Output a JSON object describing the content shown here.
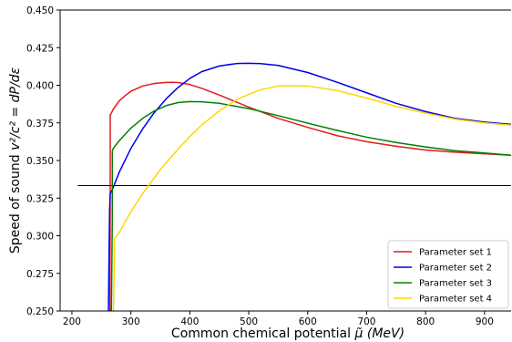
{
  "chart_data": {
    "type": "line",
    "xlabel": "Common chemical potential μ̃ (MeV)",
    "xlabel_main": "Common chemical potential ",
    "xlabel_sym": "μ̃",
    "xlabel_unit": "(MeV)",
    "ylabel": "Speed of sound v²/c² = dP/dε",
    "ylabel_main": "Speed of sound ",
    "ylabel_math": "v²/c² = dP/dε",
    "xlim": [
      180,
      945
    ],
    "ylim": [
      0.25,
      0.45
    ],
    "xticks": [
      "200",
      "300",
      "400",
      "500",
      "600",
      "700",
      "800",
      "900"
    ],
    "yticks": [
      "0.250",
      "0.275",
      "0.300",
      "0.325",
      "0.350",
      "0.375",
      "0.400",
      "0.425",
      "0.450"
    ],
    "hline": {
      "y": 0.3333,
      "x_range": [
        210,
        945
      ],
      "color": "#000000"
    },
    "legend_position": "lower-right",
    "grid": false,
    "series": [
      {
        "name": "Parameter set 1",
        "color": "#e41a1c",
        "x": [
          264.5,
          265,
          265,
          270,
          280,
          290,
          300,
          320,
          340,
          360,
          370,
          380,
          400,
          420,
          450,
          500,
          550,
          600,
          650,
          700,
          750,
          800,
          850,
          900,
          945
        ],
        "y": [
          0.25,
          0.34,
          0.38,
          0.384,
          0.3895,
          0.393,
          0.396,
          0.3995,
          0.4012,
          0.4019,
          0.402,
          0.4018,
          0.4005,
          0.398,
          0.3935,
          0.3855,
          0.378,
          0.372,
          0.3665,
          0.3625,
          0.3595,
          0.357,
          0.3555,
          0.3545,
          0.3535
        ]
      },
      {
        "name": "Parameter set 2",
        "color": "#0000e6",
        "x": [
          262,
          263,
          264,
          265,
          270,
          280,
          300,
          320,
          340,
          360,
          380,
          400,
          420,
          450,
          480,
          500,
          520,
          550,
          600,
          650,
          700,
          750,
          800,
          850,
          900,
          945
        ],
        "y": [
          0.25,
          0.29,
          0.318,
          0.328,
          0.332,
          0.342,
          0.358,
          0.371,
          0.382,
          0.391,
          0.3985,
          0.4045,
          0.409,
          0.4128,
          0.4145,
          0.4146,
          0.4144,
          0.4132,
          0.4085,
          0.402,
          0.395,
          0.388,
          0.3825,
          0.378,
          0.3755,
          0.374
        ]
      },
      {
        "name": "Parameter set 3",
        "color": "#008000",
        "x": [
          267,
          268.5,
          268.5,
          270,
          280,
          300,
          320,
          340,
          360,
          380,
          400,
          420,
          450,
          500,
          550,
          600,
          650,
          700,
          750,
          800,
          850,
          900,
          945
        ],
        "y": [
          0.25,
          0.31,
          0.356,
          0.358,
          0.363,
          0.3715,
          0.378,
          0.383,
          0.3865,
          0.3885,
          0.3892,
          0.389,
          0.388,
          0.3845,
          0.3798,
          0.3748,
          0.37,
          0.3655,
          0.362,
          0.359,
          0.3565,
          0.355,
          0.3535
        ]
      },
      {
        "name": "Parameter set 4",
        "color": "#ffd700",
        "x": [
          270.5,
          272,
          272,
          280,
          300,
          320,
          350,
          380,
          400,
          420,
          450,
          480,
          500,
          520,
          550,
          570,
          600,
          650,
          700,
          750,
          800,
          850,
          900,
          945
        ],
        "y": [
          0.25,
          0.285,
          0.298,
          0.302,
          0.316,
          0.328,
          0.344,
          0.3575,
          0.366,
          0.3735,
          0.383,
          0.3905,
          0.394,
          0.397,
          0.3995,
          0.3998,
          0.3995,
          0.3965,
          0.3915,
          0.386,
          0.3815,
          0.3775,
          0.375,
          0.3735
        ]
      }
    ]
  }
}
